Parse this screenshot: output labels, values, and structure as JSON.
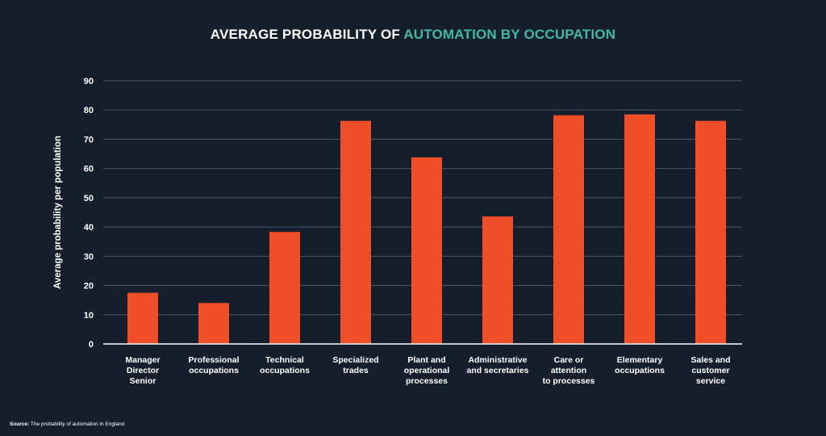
{
  "chart_data": {
    "type": "bar",
    "title_part1": "AVERAGE PROBABILITY OF ",
    "title_part2": "AUTOMATION BY OCCUPATION",
    "ylabel": "Average probability per population",
    "xlabel": "",
    "ylim": [
      0,
      90
    ],
    "yticks": [
      0,
      10,
      20,
      30,
      40,
      50,
      60,
      70,
      80,
      90
    ],
    "grid": true,
    "categories": [
      [
        "Manager",
        "Director",
        "Senior"
      ],
      [
        "Professional",
        "occupations"
      ],
      [
        "Technical",
        "occupations"
      ],
      [
        "Specialized",
        "trades"
      ],
      [
        "Plant and",
        "operational",
        "processes"
      ],
      [
        "Administrative",
        "and secretaries"
      ],
      [
        "Care or",
        "attention",
        "to processes"
      ],
      [
        "Elementary",
        "occupations"
      ],
      [
        "Sales and",
        "customer",
        "service"
      ]
    ],
    "values": [
      17.5,
      14,
      38.3,
      76.3,
      63.8,
      43.6,
      78.2,
      78.5,
      76.3
    ]
  },
  "colors": {
    "background": "#141f2b",
    "bar": "#f04e28",
    "accent": "#3fb9a6",
    "grid": "#4c5663"
  },
  "source": {
    "label": "Source:",
    "text": " The probability of automation in England"
  }
}
